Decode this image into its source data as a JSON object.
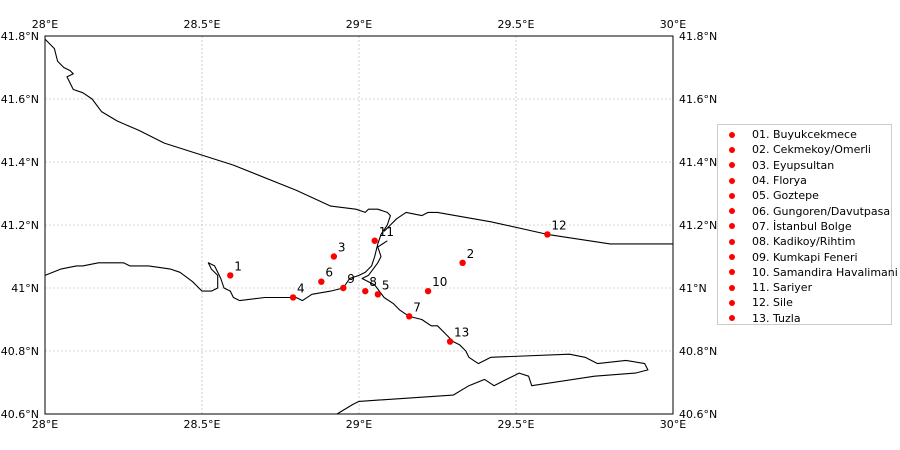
{
  "map": {
    "lon_range": [
      28.0,
      30.0
    ],
    "lat_range": [
      40.6,
      41.8
    ],
    "grid": true,
    "gridline_color": "#b0b0b0",
    "coastline_color": "#000000",
    "marker_color": "#ff0000",
    "lon_ticks": [
      {
        "value": 28.0,
        "label": "28°E"
      },
      {
        "value": 28.5,
        "label": "28.5°E"
      },
      {
        "value": 29.0,
        "label": "29°E"
      },
      {
        "value": 29.5,
        "label": "29.5°E"
      },
      {
        "value": 30.0,
        "label": "30°E"
      }
    ],
    "lat_ticks": [
      {
        "value": 41.8,
        "label": "41.8°N"
      },
      {
        "value": 41.6,
        "label": "41.6°N"
      },
      {
        "value": 41.4,
        "label": "41.4°N"
      },
      {
        "value": 41.2,
        "label": "41.2°N"
      },
      {
        "value": 41.0,
        "label": "41°N"
      },
      {
        "value": 40.8,
        "label": "40.8°N"
      },
      {
        "value": 40.6,
        "label": "40.6°N"
      }
    ],
    "coastlines": [
      [
        [
          28.0,
          41.79
        ],
        [
          28.03,
          41.76
        ],
        [
          28.04,
          41.72
        ],
        [
          28.06,
          41.7
        ],
        [
          28.08,
          41.69
        ],
        [
          28.09,
          41.68
        ],
        [
          28.07,
          41.67
        ],
        [
          28.09,
          41.63
        ],
        [
          28.12,
          41.62
        ],
        [
          28.15,
          41.6
        ],
        [
          28.18,
          41.56
        ],
        [
          28.23,
          41.53
        ],
        [
          28.3,
          41.5
        ],
        [
          28.38,
          41.46
        ],
        [
          28.6,
          41.39
        ],
        [
          28.8,
          41.31
        ],
        [
          28.91,
          41.26
        ],
        [
          28.99,
          41.25
        ],
        [
          29.02,
          41.24
        ],
        [
          29.03,
          41.25
        ],
        [
          29.06,
          41.25
        ],
        [
          29.09,
          41.24
        ],
        [
          29.1,
          41.23
        ],
        [
          29.09,
          41.2
        ],
        [
          29.07,
          41.17
        ],
        [
          29.06,
          41.14
        ],
        [
          29.05,
          41.1
        ],
        [
          29.04,
          41.07
        ],
        [
          29.02,
          41.05
        ],
        [
          29.0,
          41.04
        ],
        [
          28.97,
          41.03
        ],
        [
          28.95,
          41.0
        ],
        [
          28.91,
          40.99
        ],
        [
          28.85,
          40.98
        ],
        [
          28.82,
          40.96
        ],
        [
          28.8,
          40.97
        ],
        [
          28.7,
          40.97
        ],
        [
          28.62,
          40.96
        ],
        [
          28.6,
          40.97
        ],
        [
          28.59,
          40.99
        ],
        [
          28.57,
          41.0
        ],
        [
          28.56,
          41.03
        ],
        [
          28.54,
          41.07
        ],
        [
          28.52,
          41.08
        ],
        [
          28.53,
          41.06
        ],
        [
          28.55,
          41.04
        ],
        [
          28.55,
          41.0
        ],
        [
          28.53,
          40.99
        ],
        [
          28.5,
          40.99
        ],
        [
          28.47,
          41.02
        ],
        [
          28.43,
          41.05
        ],
        [
          28.4,
          41.06
        ],
        [
          28.33,
          41.07
        ],
        [
          28.27,
          41.07
        ],
        [
          28.25,
          41.08
        ],
        [
          28.2,
          41.08
        ],
        [
          28.17,
          41.08
        ],
        [
          28.12,
          41.07
        ],
        [
          28.1,
          41.07
        ],
        [
          28.05,
          41.06
        ],
        [
          28.0,
          41.04
        ]
      ],
      [
        [
          29.08,
          41.18
        ],
        [
          29.1,
          41.2
        ],
        [
          29.12,
          41.22
        ],
        [
          29.15,
          41.24
        ],
        [
          29.2,
          41.23
        ],
        [
          29.22,
          41.24
        ],
        [
          29.25,
          41.24
        ],
        [
          29.42,
          41.21
        ],
        [
          29.6,
          41.17
        ],
        [
          29.8,
          41.14
        ],
        [
          29.88,
          41.14
        ],
        [
          30.0,
          41.14
        ]
      ],
      [
        [
          29.09,
          41.15
        ],
        [
          29.06,
          41.13
        ],
        [
          29.07,
          41.1
        ],
        [
          29.06,
          41.08
        ],
        [
          29.03,
          41.04
        ],
        [
          29.01,
          41.03
        ],
        [
          29.03,
          41.02
        ],
        [
          29.05,
          41.01
        ],
        [
          29.08,
          40.97
        ],
        [
          29.11,
          40.95
        ],
        [
          29.13,
          40.93
        ],
        [
          29.16,
          40.91
        ],
        [
          29.2,
          40.9
        ],
        [
          29.23,
          40.88
        ],
        [
          29.25,
          40.88
        ],
        [
          29.27,
          40.86
        ],
        [
          29.3,
          40.83
        ],
        [
          29.32,
          40.82
        ],
        [
          29.34,
          40.8
        ],
        [
          29.35,
          40.78
        ],
        [
          29.38,
          40.76
        ],
        [
          29.42,
          40.78
        ],
        [
          29.67,
          40.79
        ],
        [
          29.72,
          40.78
        ],
        [
          29.76,
          40.76
        ],
        [
          29.85,
          40.77
        ],
        [
          29.91,
          40.76
        ],
        [
          29.92,
          40.74
        ],
        [
          29.88,
          40.73
        ],
        [
          29.75,
          40.72
        ],
        [
          29.55,
          40.69
        ],
        [
          29.54,
          40.72
        ],
        [
          29.51,
          40.73
        ],
        [
          29.49,
          40.72
        ],
        [
          29.45,
          40.7
        ],
        [
          29.43,
          40.69
        ],
        [
          29.4,
          40.71
        ],
        [
          29.35,
          40.69
        ],
        [
          29.3,
          40.66
        ],
        [
          29.0,
          40.64
        ],
        [
          28.98,
          40.63
        ],
        [
          28.93,
          40.6
        ]
      ]
    ]
  },
  "stations": [
    {
      "n": "1",
      "lon": 28.59,
      "lat": 41.04
    },
    {
      "n": "2",
      "lon": 29.33,
      "lat": 41.08
    },
    {
      "n": "3",
      "lon": 28.92,
      "lat": 41.1
    },
    {
      "n": "4",
      "lon": 28.79,
      "lat": 40.97
    },
    {
      "n": "5",
      "lon": 29.06,
      "lat": 40.98
    },
    {
      "n": "6",
      "lon": 28.88,
      "lat": 41.02
    },
    {
      "n": "7",
      "lon": 29.16,
      "lat": 40.91
    },
    {
      "n": "8",
      "lon": 29.02,
      "lat": 40.99
    },
    {
      "n": "9",
      "lon": 28.95,
      "lat": 41.0
    },
    {
      "n": "10",
      "lon": 29.22,
      "lat": 40.99
    },
    {
      "n": "11",
      "lon": 29.05,
      "lat": 41.15
    },
    {
      "n": "12",
      "lon": 29.6,
      "lat": 41.17
    },
    {
      "n": "13",
      "lon": 29.29,
      "lat": 40.83
    }
  ],
  "legend": {
    "entries": [
      "01. Buyukcekmece",
      "02. Cekmekoy/Omerli",
      "03. Eyupsultan",
      "04. Florya",
      "05. Goztepe",
      "06. Gungoren/Davutpasa",
      "07. İstanbul Bolge",
      "08. Kadikoy/Rihtim",
      "09. Kumkapi Feneri",
      "10. Samandira Havalimani",
      "11. Sariyer",
      "12. Sile",
      "13. Tuzla"
    ]
  }
}
